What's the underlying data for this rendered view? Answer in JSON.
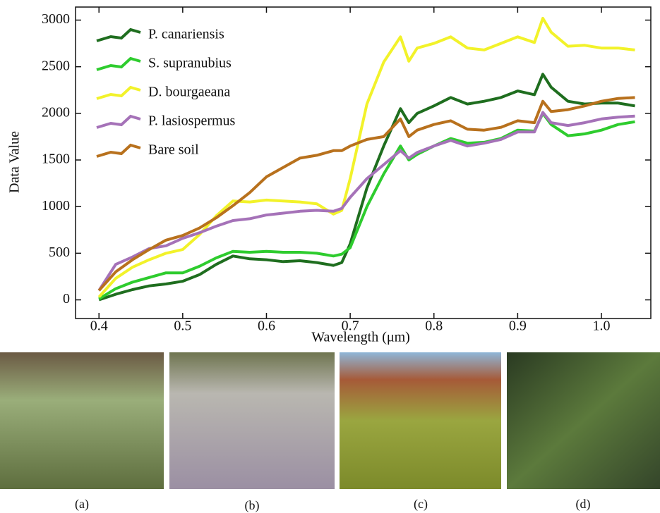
{
  "chart_data": {
    "type": "line",
    "ylabel": "Data Value",
    "xlabel": "Wavelength (μm)",
    "x": [
      0.4,
      0.42,
      0.44,
      0.46,
      0.48,
      0.5,
      0.52,
      0.54,
      0.56,
      0.58,
      0.6,
      0.62,
      0.64,
      0.66,
      0.68,
      0.69,
      0.7,
      0.72,
      0.74,
      0.76,
      0.77,
      0.78,
      0.8,
      0.82,
      0.84,
      0.86,
      0.88,
      0.9,
      0.92,
      0.93,
      0.94,
      0.96,
      0.98,
      1.0,
      1.02,
      1.04
    ],
    "series": [
      {
        "name": "P. canariensis",
        "color": "#1f6e1f",
        "values": [
          0,
          60,
          110,
          150,
          170,
          200,
          270,
          380,
          470,
          440,
          430,
          410,
          420,
          400,
          370,
          400,
          600,
          1200,
          1650,
          2050,
          1900,
          2000,
          2080,
          2170,
          2100,
          2130,
          2170,
          2240,
          2200,
          2420,
          2280,
          2130,
          2100,
          2110,
          2110,
          2080
        ]
      },
      {
        "name": "S. supranubius",
        "color": "#2ecc2e",
        "values": [
          10,
          120,
          190,
          240,
          290,
          290,
          360,
          450,
          520,
          510,
          520,
          510,
          510,
          500,
          470,
          490,
          560,
          1000,
          1350,
          1650,
          1500,
          1560,
          1650,
          1730,
          1680,
          1690,
          1730,
          1820,
          1810,
          2000,
          1880,
          1760,
          1780,
          1820,
          1880,
          1910
        ]
      },
      {
        "name": "D. bourgaeana",
        "color": "#f2f22a",
        "values": [
          30,
          230,
          350,
          430,
          500,
          540,
          700,
          900,
          1060,
          1050,
          1070,
          1060,
          1050,
          1030,
          920,
          960,
          1300,
          2100,
          2550,
          2820,
          2560,
          2700,
          2750,
          2820,
          2700,
          2680,
          2750,
          2820,
          2760,
          3020,
          2870,
          2720,
          2730,
          2700,
          2700,
          2680
        ]
      },
      {
        "name": "P. lasiospermus",
        "color": "#a572b8",
        "values": [
          100,
          380,
          460,
          550,
          580,
          660,
          720,
          790,
          850,
          870,
          910,
          930,
          950,
          960,
          950,
          980,
          1100,
          1300,
          1450,
          1600,
          1520,
          1580,
          1650,
          1710,
          1650,
          1680,
          1720,
          1800,
          1800,
          2010,
          1900,
          1870,
          1900,
          1940,
          1960,
          1970
        ]
      },
      {
        "name": "Bare soil",
        "color": "#b8711d",
        "values": [
          100,
          300,
          430,
          540,
          640,
          690,
          770,
          880,
          1010,
          1150,
          1320,
          1420,
          1520,
          1550,
          1600,
          1600,
          1650,
          1720,
          1750,
          1940,
          1750,
          1820,
          1880,
          1920,
          1830,
          1820,
          1850,
          1920,
          1900,
          2130,
          2020,
          2040,
          2080,
          2130,
          2160,
          2170
        ]
      }
    ],
    "xlim": [
      0.372,
      1.059
    ],
    "ylim": [
      -200,
      3140
    ],
    "xticks": [
      0.4,
      0.5,
      0.6,
      0.7,
      0.8,
      0.9,
      {
        "value": 1,
        "label": "1.0"
      }
    ],
    "yticks": [
      0,
      500,
      1000,
      1500,
      2000,
      2500,
      3000
    ],
    "legend": "upper-left"
  },
  "photos": [
    {
      "caption": "(a)"
    },
    {
      "caption": "(b)"
    },
    {
      "caption": "(c)"
    },
    {
      "caption": "(d)"
    }
  ]
}
